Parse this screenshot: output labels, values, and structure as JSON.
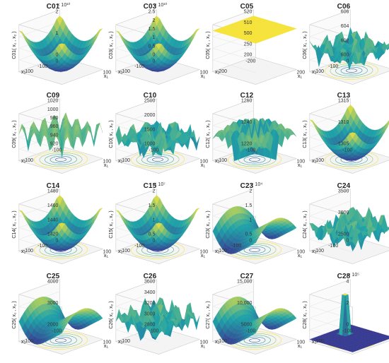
{
  "figure": {
    "panels": [
      {
        "id": "c01",
        "title": "C01",
        "zlabel": "C01( x₁ , x₂ )",
        "zticks": [
          "2",
          "1",
          "0"
        ],
        "zexp": "× 10¹⁰",
        "x1ticks": [
          "100"
        ],
        "x2ticks": [
          "0",
          "-100",
          "-100"
        ],
        "surface": "bowl",
        "floor": "none"
      },
      {
        "id": "c03",
        "title": "C03",
        "zlabel": "C03( x₁ , x₂ )",
        "zticks": [
          "2.5",
          "2",
          "1.5",
          "1",
          "0.5",
          "0"
        ],
        "zexp": "× 10¹⁰",
        "x1ticks": [
          "100"
        ],
        "x2ticks": [
          "0",
          "-100",
          "-100"
        ],
        "surface": "bowl",
        "floor": "none"
      },
      {
        "id": "c05",
        "title": "C05",
        "zlabel": "C05( x₁ , x₂ )",
        "zticks": [
          "520",
          "510",
          "500",
          "250",
          "200"
        ],
        "zexp": "",
        "x1ticks": [
          "200"
        ],
        "x2ticks": [
          "-200",
          "-200"
        ],
        "surface": "flat",
        "floor": "none"
      },
      {
        "id": "c06",
        "title": "C06",
        "zlabel": "C06( x₁ , x₂ )",
        "zticks": [
          "606",
          "604",
          "602",
          "600"
        ],
        "zexp": "",
        "x1ticks": [
          "100"
        ],
        "x2ticks": [
          "0",
          "-100",
          "-100"
        ],
        "surface": "rugged",
        "floor": "contour"
      },
      {
        "id": "c09",
        "title": "C09",
        "zlabel": "C09( x₁ , x₂ )",
        "zticks": [
          "1020",
          "1000",
          "980",
          "960",
          "940",
          "920"
        ],
        "zexp": "",
        "x1ticks": [
          "100"
        ],
        "x2ticks": [
          "-100",
          "-100"
        ],
        "surface": "ridges",
        "floor": "contour"
      },
      {
        "id": "c10",
        "title": "C10",
        "zlabel": "C10( x₁ , x₂ )",
        "zticks": [
          "2500",
          "2000",
          "1500",
          "1000"
        ],
        "zexp": "",
        "x1ticks": [
          "100"
        ],
        "x2ticks": [
          "-100",
          "-100"
        ],
        "surface": "rugged",
        "floor": "contour"
      },
      {
        "id": "c12",
        "title": "C12",
        "zlabel": "C12( x₁ , x₂ )",
        "zticks": [
          "1260",
          "1240",
          "1220"
        ],
        "zexp": "",
        "x1ticks": [
          "100"
        ],
        "x2ticks": [
          "-100",
          "-100"
        ],
        "surface": "spikes",
        "floor": "contour"
      },
      {
        "id": "c13",
        "title": "C13",
        "zlabel": "C13( x₁ , x₂ )",
        "zticks": [
          "1315",
          "1310",
          "1305"
        ],
        "zexp": "",
        "x1ticks": [
          "100"
        ],
        "x2ticks": [
          "-100",
          "-100"
        ],
        "surface": "bowl",
        "floor": "contour"
      },
      {
        "id": "c14",
        "title": "C14",
        "zlabel": "C14( x₁ , x₂ )",
        "zticks": [
          "1480",
          "1460",
          "1440",
          "1420"
        ],
        "zexp": "",
        "x1ticks": [
          "100"
        ],
        "x2ticks": [
          "0",
          "-100",
          "-100"
        ],
        "surface": "bowl",
        "floor": "contour"
      },
      {
        "id": "c15",
        "title": "C15",
        "zlabel": "C15( x₁ , x₂ )",
        "zticks": [
          "2",
          "1.5",
          "1",
          "0.5"
        ],
        "zexp": "× 10⁷",
        "x1ticks": [
          "100"
        ],
        "x2ticks": [
          "0",
          "-100",
          "-100"
        ],
        "surface": "bowl",
        "floor": "contour"
      },
      {
        "id": "c23",
        "title": "C23",
        "zlabel": "C23( x₁ , x₂ )",
        "zticks": [
          "2",
          "1.5",
          "1",
          "0.5"
        ],
        "zexp": "× 10⁴",
        "x1ticks": [
          "100"
        ],
        "x2ticks": [
          "0",
          "-100",
          "-100"
        ],
        "surface": "saddle",
        "floor": "contour"
      },
      {
        "id": "c24",
        "title": "C24",
        "zlabel": "C24( x₁ , x₂ )",
        "zticks": [
          "3500",
          "3000",
          "2500"
        ],
        "zexp": "",
        "x1ticks": [
          "100"
        ],
        "x2ticks": [
          "0",
          "-100",
          "-100"
        ],
        "surface": "rugged",
        "floor": "none"
      },
      {
        "id": "c25",
        "title": "C25",
        "zlabel": "C25( x₁ , x₂ )",
        "zticks": [
          "4000",
          "3000",
          "2000"
        ],
        "zexp": "",
        "x1ticks": [
          "100"
        ],
        "x2ticks": [
          "-100",
          "-100"
        ],
        "surface": "saddle",
        "floor": "contour"
      },
      {
        "id": "c26",
        "title": "C26",
        "zlabel": "C26( x₁ , x₂ )",
        "zticks": [
          "3600",
          "3400",
          "3200",
          "3000",
          "2800"
        ],
        "zexp": "",
        "x1ticks": [
          "100"
        ],
        "x2ticks": [
          "-100",
          "-100"
        ],
        "surface": "rugged",
        "floor": "none"
      },
      {
        "id": "c27",
        "title": "C27",
        "zlabel": "C27( x₁ , x₂ )",
        "zticks": [
          "15,000",
          "10,000",
          "5000"
        ],
        "zexp": "",
        "x1ticks": [
          "100"
        ],
        "x2ticks": [
          "-100",
          "-100"
        ],
        "surface": "saddle",
        "floor": "contour"
      },
      {
        "id": "c28",
        "title": "C28",
        "zlabel": "C28( x₁ , x₂ )",
        "zticks": [
          "4",
          "2",
          "0"
        ],
        "zexp": "× 10⁵",
        "x1ticks": [
          "100"
        ],
        "x2ticks": [
          "-100",
          "-100"
        ],
        "surface": "spike",
        "floor": "contour"
      }
    ],
    "axis_labels": {
      "x1": "x₁",
      "x2": "x₂"
    },
    "colors": {
      "low": "#3b2f8f",
      "mid": "#1fa3a8",
      "high": "#f5e33a",
      "box": "#cccccc"
    }
  }
}
